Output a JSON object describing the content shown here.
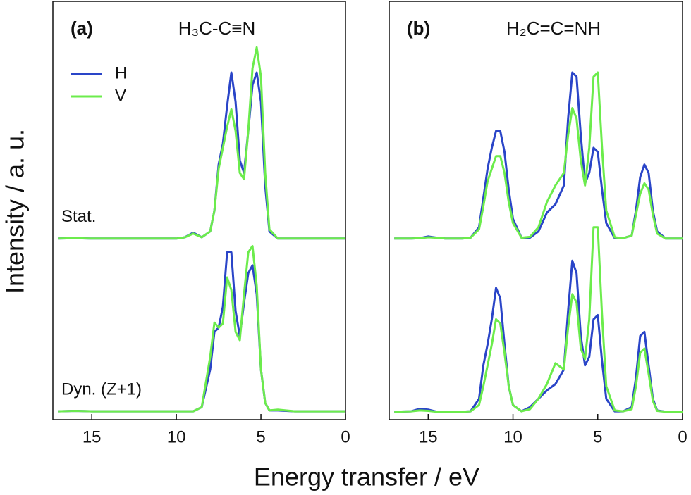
{
  "chart_data": [
    {
      "type": "line",
      "panel": "(a)",
      "title": "H₃C-C≡N",
      "xlabel": "Energy transfer  / eV",
      "ylabel": "Intensity  / a. u.",
      "xlim": [
        17.3,
        0
      ],
      "xticks": [
        15,
        10,
        5,
        0
      ],
      "ylim": [
        0,
        10
      ],
      "legend": "upper left",
      "x": [
        17,
        16,
        15,
        14,
        13,
        12,
        11,
        10,
        9.5,
        9,
        8.5,
        8,
        7.75,
        7.5,
        7.25,
        7,
        6.75,
        6.5,
        6.25,
        6,
        5.75,
        5.5,
        5.25,
        5,
        4.75,
        4.5,
        4,
        3,
        2,
        1,
        0
      ],
      "groups": [
        {
          "label": "Stat.",
          "series": [
            {
              "name": "H",
              "color": "#2a45c8",
              "values": [
                4.33,
                4.34,
                4.33,
                4.33,
                4.33,
                4.33,
                4.33,
                4.33,
                4.36,
                4.47,
                4.36,
                4.5,
                5.0,
                6.1,
                6.6,
                7.5,
                8.3,
                7.6,
                6.2,
                5.9,
                6.9,
                8.0,
                8.3,
                7.6,
                5.6,
                4.5,
                4.33,
                4.33,
                4.33,
                4.33,
                4.33
              ]
            },
            {
              "name": "V",
              "color": "#6cec4c",
              "values": [
                4.33,
                4.34,
                4.33,
                4.33,
                4.33,
                4.33,
                4.33,
                4.33,
                4.36,
                4.45,
                4.36,
                4.5,
                5.0,
                6.0,
                6.5,
                7.0,
                7.42,
                6.9,
                5.9,
                5.75,
                6.9,
                8.4,
                8.9,
                8.2,
                5.9,
                4.55,
                4.33,
                4.33,
                4.33,
                4.33,
                4.33
              ]
            }
          ]
        },
        {
          "label": "Dyn. (Z+1)",
          "series": [
            {
              "color": "#2a45c8",
              "values": [
                0.2,
                0.21,
                0.2,
                0.2,
                0.2,
                0.2,
                0.2,
                0.2,
                0.2,
                0.2,
                0.3,
                1.2,
                2.1,
                2.2,
                2.7,
                4.0,
                4.0,
                2.6,
                2.0,
                2.8,
                3.5,
                3.69,
                3.0,
                1.2,
                0.4,
                0.22,
                0.22,
                0.2,
                0.2,
                0.2,
                0.2
              ]
            },
            {
              "color": "#6cec4c",
              "values": [
                0.2,
                0.21,
                0.2,
                0.2,
                0.2,
                0.2,
                0.2,
                0.2,
                0.2,
                0.2,
                0.3,
                1.5,
                2.32,
                2.2,
                2.3,
                3.4,
                3.1,
                2.1,
                1.9,
                3.0,
                4.0,
                4.15,
                3.2,
                1.2,
                0.4,
                0.22,
                0.24,
                0.2,
                0.2,
                0.2,
                0.2
              ]
            }
          ]
        }
      ]
    },
    {
      "type": "line",
      "panel": "(b)",
      "title": "H₂C=C=NH",
      "xlim": [
        17.3,
        0
      ],
      "xticks": [
        15,
        10,
        5,
        0
      ],
      "ylim": [
        0,
        10
      ],
      "x": [
        17,
        16,
        15.5,
        15,
        14.5,
        14,
        13,
        12.5,
        12,
        11.75,
        11.5,
        11.25,
        11,
        10.75,
        10.5,
        10.25,
        10,
        9.5,
        9,
        8.5,
        8,
        7.5,
        7,
        6.75,
        6.5,
        6.25,
        6,
        5.75,
        5.5,
        5.25,
        5,
        4.75,
        4.5,
        4,
        3.5,
        3,
        2.75,
        2.5,
        2.25,
        2,
        1.75,
        1.5,
        1,
        0
      ],
      "groups": [
        {
          "series": [
            {
              "color": "#2a45c8",
              "values": [
                4.33,
                4.33,
                4.34,
                4.38,
                4.35,
                4.33,
                4.33,
                4.35,
                4.6,
                5.3,
                6.0,
                6.5,
                6.9,
                6.9,
                6.4,
                5.5,
                4.8,
                4.35,
                4.35,
                4.5,
                4.95,
                5.15,
                5.6,
                7.2,
                8.3,
                8.2,
                6.8,
                5.65,
                5.9,
                6.5,
                6.4,
                5.5,
                4.7,
                4.34,
                4.34,
                4.4,
                5.0,
                5.8,
                6.1,
                5.9,
                5.0,
                4.5,
                4.33,
                4.33
              ]
            },
            {
              "color": "#6cec4c",
              "values": [
                4.33,
                4.33,
                4.34,
                4.36,
                4.35,
                4.33,
                4.33,
                4.35,
                4.55,
                5.1,
                5.7,
                6.0,
                6.3,
                6.3,
                5.9,
                5.2,
                4.7,
                4.35,
                4.37,
                4.6,
                5.2,
                5.6,
                5.9,
                6.8,
                7.45,
                7.2,
                6.2,
                5.6,
                6.5,
                8.2,
                8.3,
                6.5,
                5.0,
                4.36,
                4.34,
                4.4,
                4.9,
                5.4,
                5.65,
                5.5,
                4.9,
                4.45,
                4.33,
                4.33
              ]
            }
          ]
        },
        {
          "series": [
            {
              "color": "#2a45c8",
              "values": [
                0.19,
                0.2,
                0.26,
                0.24,
                0.19,
                0.19,
                0.19,
                0.2,
                0.5,
                1.3,
                1.8,
                2.4,
                3.15,
                2.9,
                1.8,
                0.8,
                0.35,
                0.2,
                0.3,
                0.5,
                0.7,
                0.85,
                1.2,
                2.6,
                3.8,
                3.5,
                2.0,
                1.3,
                1.5,
                2.4,
                2.5,
                1.4,
                0.5,
                0.2,
                0.2,
                0.3,
                1.0,
                2.0,
                2.1,
                1.3,
                0.5,
                0.22,
                0.19,
                0.19
              ]
            },
            {
              "color": "#6cec4c",
              "values": [
                0.19,
                0.2,
                0.22,
                0.21,
                0.19,
                0.19,
                0.19,
                0.2,
                0.35,
                0.8,
                1.3,
                1.8,
                2.4,
                2.3,
                1.6,
                0.8,
                0.35,
                0.2,
                0.25,
                0.5,
                0.85,
                1.35,
                1.2,
                2.2,
                3.0,
                2.8,
                1.7,
                1.45,
                2.4,
                4.6,
                4.6,
                2.5,
                0.8,
                0.22,
                0.2,
                0.25,
                0.8,
                1.6,
                1.7,
                1.1,
                0.45,
                0.21,
                0.19,
                0.19
              ]
            }
          ]
        }
      ]
    }
  ]
}
